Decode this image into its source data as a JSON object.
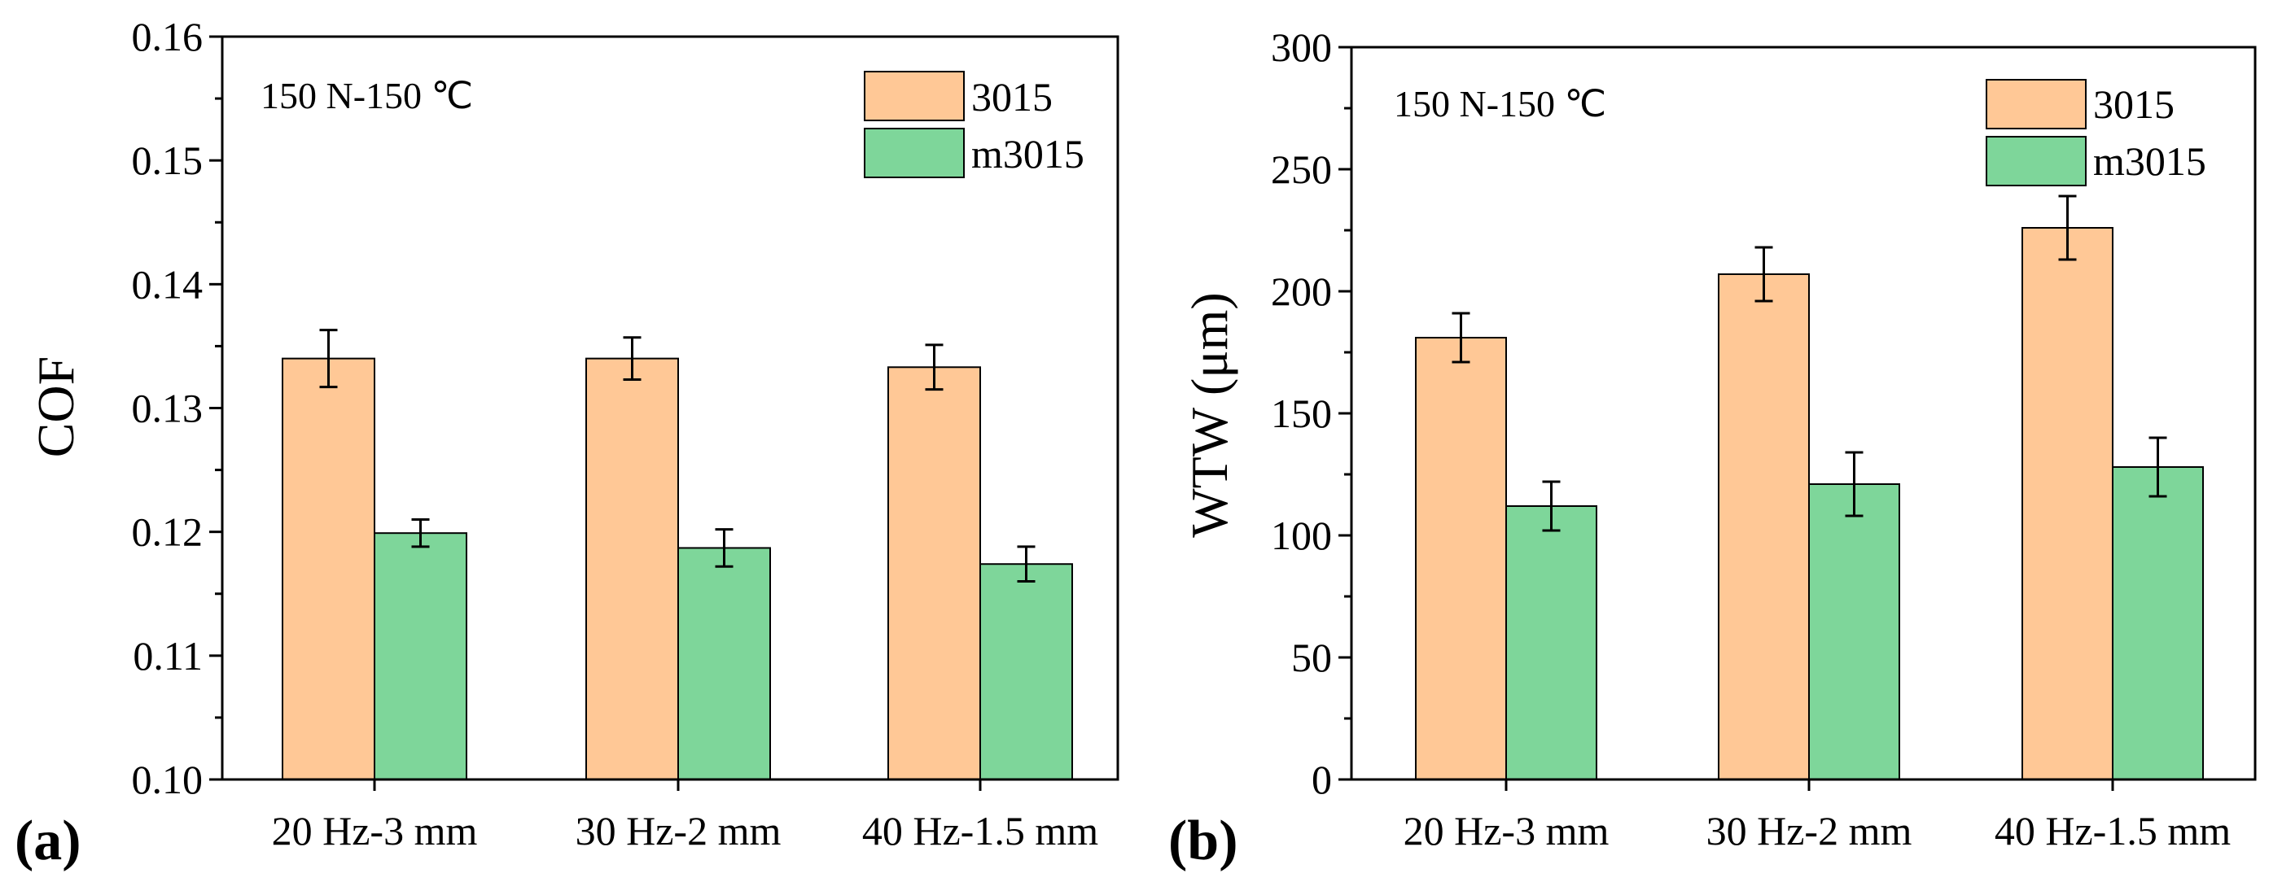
{
  "chart_data": [
    {
      "panel_label": "(a)",
      "type": "bar",
      "annotation": "150 N-150 ℃",
      "xlabel": "",
      "ylabel": "COF",
      "ylim": [
        0.1,
        0.16
      ],
      "yticks": [
        "0.10",
        "0.11",
        "0.12",
        "0.13",
        "0.14",
        "0.15",
        "0.16"
      ],
      "categories": [
        "20 Hz-3 mm",
        "30 Hz-2 mm",
        "40 Hz-1.5 mm"
      ],
      "legend_position": "top-right",
      "grid": false,
      "series": [
        {
          "name": "3015",
          "color": "#FFC896",
          "values": [
            0.134,
            0.134,
            0.1333
          ],
          "errors": [
            0.0023,
            0.0017,
            0.0018
          ]
        },
        {
          "name": "m3015",
          "color": "#7ED69A",
          "values": [
            0.1199,
            0.1187,
            0.1174
          ],
          "errors": [
            0.0011,
            0.0015,
            0.0014
          ]
        }
      ]
    },
    {
      "panel_label": "(b)",
      "type": "bar",
      "annotation": "150 N-150 ℃",
      "xlabel": "",
      "ylabel": "WTW (μm)",
      "ylim": [
        0,
        300
      ],
      "yticks": [
        "0",
        "50",
        "100",
        "150",
        "200",
        "250",
        "300"
      ],
      "categories": [
        "20 Hz-3 mm",
        "30 Hz-2 mm",
        "40 Hz-1.5 mm"
      ],
      "legend_position": "top-right",
      "grid": false,
      "series": [
        {
          "name": "3015",
          "color": "#FFC896",
          "values": [
            181,
            207,
            226
          ],
          "errors": [
            10,
            11,
            13
          ]
        },
        {
          "name": "m3015",
          "color": "#7ED69A",
          "values": [
            112,
            121,
            128
          ],
          "errors": [
            10,
            13,
            12
          ]
        }
      ]
    }
  ]
}
